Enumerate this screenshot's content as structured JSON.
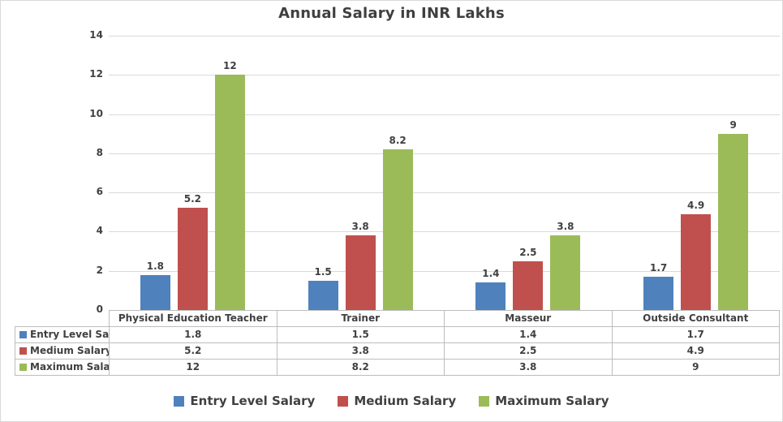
{
  "chart_data": {
    "type": "bar",
    "title": "Annual Salary in INR Lakhs",
    "categories": [
      "Physical Education Teacher",
      "Trainer",
      "Masseur",
      "Outside Consultant"
    ],
    "series": [
      {
        "name": "Entry Level Salary",
        "color": "#4F81BD",
        "values": [
          1.8,
          1.5,
          1.4,
          1.7
        ]
      },
      {
        "name": "Medium Salary",
        "color": "#C0504D",
        "values": [
          5.2,
          3.8,
          2.5,
          4.9
        ]
      },
      {
        "name": "Maximum Salary",
        "color": "#9BBB59",
        "values": [
          12,
          8.2,
          3.8,
          9
        ]
      }
    ],
    "ylim": [
      0,
      14
    ],
    "yticks": [
      0,
      2,
      4,
      6,
      8,
      10,
      12,
      14
    ],
    "grid": true,
    "data_labels": true,
    "data_table": true,
    "legend_position": "bottom"
  },
  "style": {
    "background": "#FFFFFF",
    "title_color": "#3F3F3F",
    "text_color": "#404040",
    "grid_color": "#D9D9D9",
    "table_border_color": "#BDBDBD",
    "series_colors": [
      "#4F81BD",
      "#C0504D",
      "#9BBB59"
    ]
  }
}
